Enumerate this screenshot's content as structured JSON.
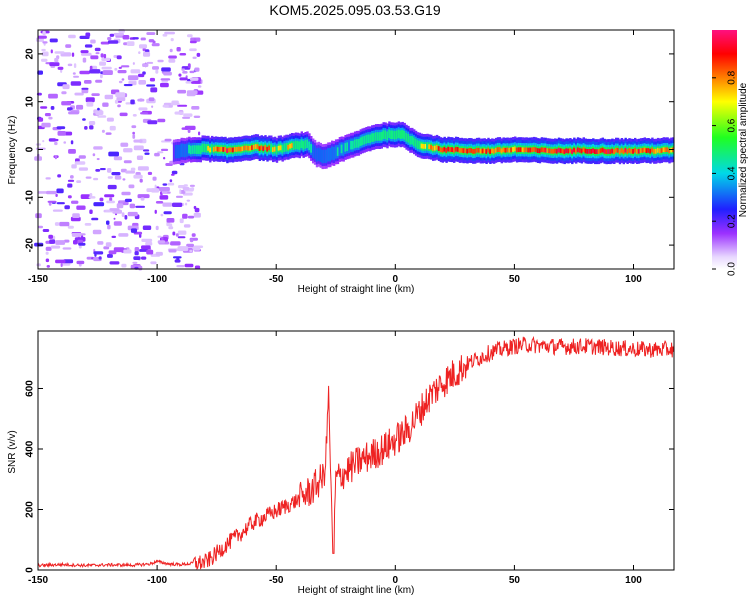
{
  "title": "KOM5.2025.095.03.53.G19",
  "colors": {
    "snr_line": "#ee2222",
    "frame": "#000000"
  },
  "chart_data": [
    {
      "type": "heatmap",
      "panel": "top",
      "xlabel": "Height of straight line (km)",
      "ylabel": "Frequency (Hz)",
      "xlim": [
        -150,
        117
      ],
      "ylim": [
        -25,
        25
      ],
      "xticks": [
        -150,
        -100,
        -50,
        0,
        50,
        100
      ],
      "yticks": [
        -20,
        -10,
        0,
        10,
        20
      ],
      "colorbar": {
        "label": "Normalized spectral amplitude",
        "range": [
          0,
          1
        ],
        "ticks": [
          0.0,
          0.2,
          0.4,
          0.6,
          0.8
        ],
        "colormap": "rainbow (white-purple-blue-cyan-green-yellow-red-magenta)"
      },
      "noise_region_x": [
        -150,
        -82
      ],
      "ridge": {
        "x": [
          -93,
          -85,
          -80,
          -75,
          -70,
          -65,
          -60,
          -55,
          -50,
          -45,
          -40,
          -37,
          -35,
          -33,
          -30,
          -25,
          -20,
          -15,
          -10,
          -5,
          0,
          3,
          5,
          8,
          10,
          15,
          20,
          30,
          40,
          50,
          60,
          70,
          80,
          90,
          100,
          110,
          117
        ],
        "freq": [
          -0.5,
          0,
          0.2,
          0,
          -0.2,
          0.2,
          0.5,
          0.3,
          0,
          0.5,
          1,
          1,
          0,
          -1,
          -1.5,
          -0.5,
          0.5,
          1.5,
          2.5,
          3,
          3.2,
          3,
          2.5,
          1.5,
          1,
          0.5,
          0,
          -0.2,
          -0.3,
          0,
          -0.2,
          -0.3,
          -0.2,
          -0.3,
          -0.3,
          -0.2,
          -0.2
        ],
        "amp": [
          0.3,
          0.5,
          0.7,
          0.85,
          0.95,
          0.8,
          0.85,
          0.9,
          0.7,
          0.75,
          0.7,
          0.6,
          0.4,
          0.3,
          0.35,
          0.45,
          0.5,
          0.55,
          0.6,
          0.65,
          0.7,
          0.75,
          0.7,
          0.65,
          0.7,
          0.8,
          0.9,
          0.85,
          0.9,
          0.85,
          0.9,
          0.95,
          0.9,
          0.95,
          0.9,
          0.85,
          0.8
        ]
      }
    },
    {
      "type": "line",
      "panel": "bottom",
      "xlabel": "Height of straight line (km)",
      "ylabel": "SNR (v/v)",
      "xlim": [
        -150,
        117
      ],
      "ylim": [
        0,
        790
      ],
      "xticks": [
        -150,
        -100,
        -50,
        0,
        50,
        100
      ],
      "yticks": [
        0,
        200,
        400,
        600
      ],
      "series": [
        {
          "x": [
            -150,
            -140,
            -130,
            -120,
            -110,
            -103,
            -100,
            -95,
            -90,
            -85,
            -80,
            -77,
            -75,
            -70,
            -65,
            -60,
            -55,
            -50,
            -45,
            -40,
            -35,
            -30,
            -29,
            -28,
            -27,
            -26,
            -25,
            -20,
            -15,
            -10,
            -5,
            0,
            5,
            10,
            15,
            20,
            25,
            30,
            35,
            40,
            45,
            50,
            55,
            60,
            70,
            80,
            90,
            100,
            110,
            117
          ],
          "y": [
            15,
            18,
            15,
            17,
            16,
            20,
            28,
            20,
            18,
            22,
            25,
            40,
            55,
            90,
            120,
            155,
            175,
            195,
            215,
            235,
            265,
            310,
            390,
            600,
            250,
            80,
            300,
            330,
            360,
            380,
            400,
            430,
            460,
            520,
            580,
            620,
            650,
            680,
            700,
            720,
            730,
            740,
            745,
            742,
            738,
            740,
            735,
            730,
            728,
            730
          ]
        }
      ]
    }
  ]
}
